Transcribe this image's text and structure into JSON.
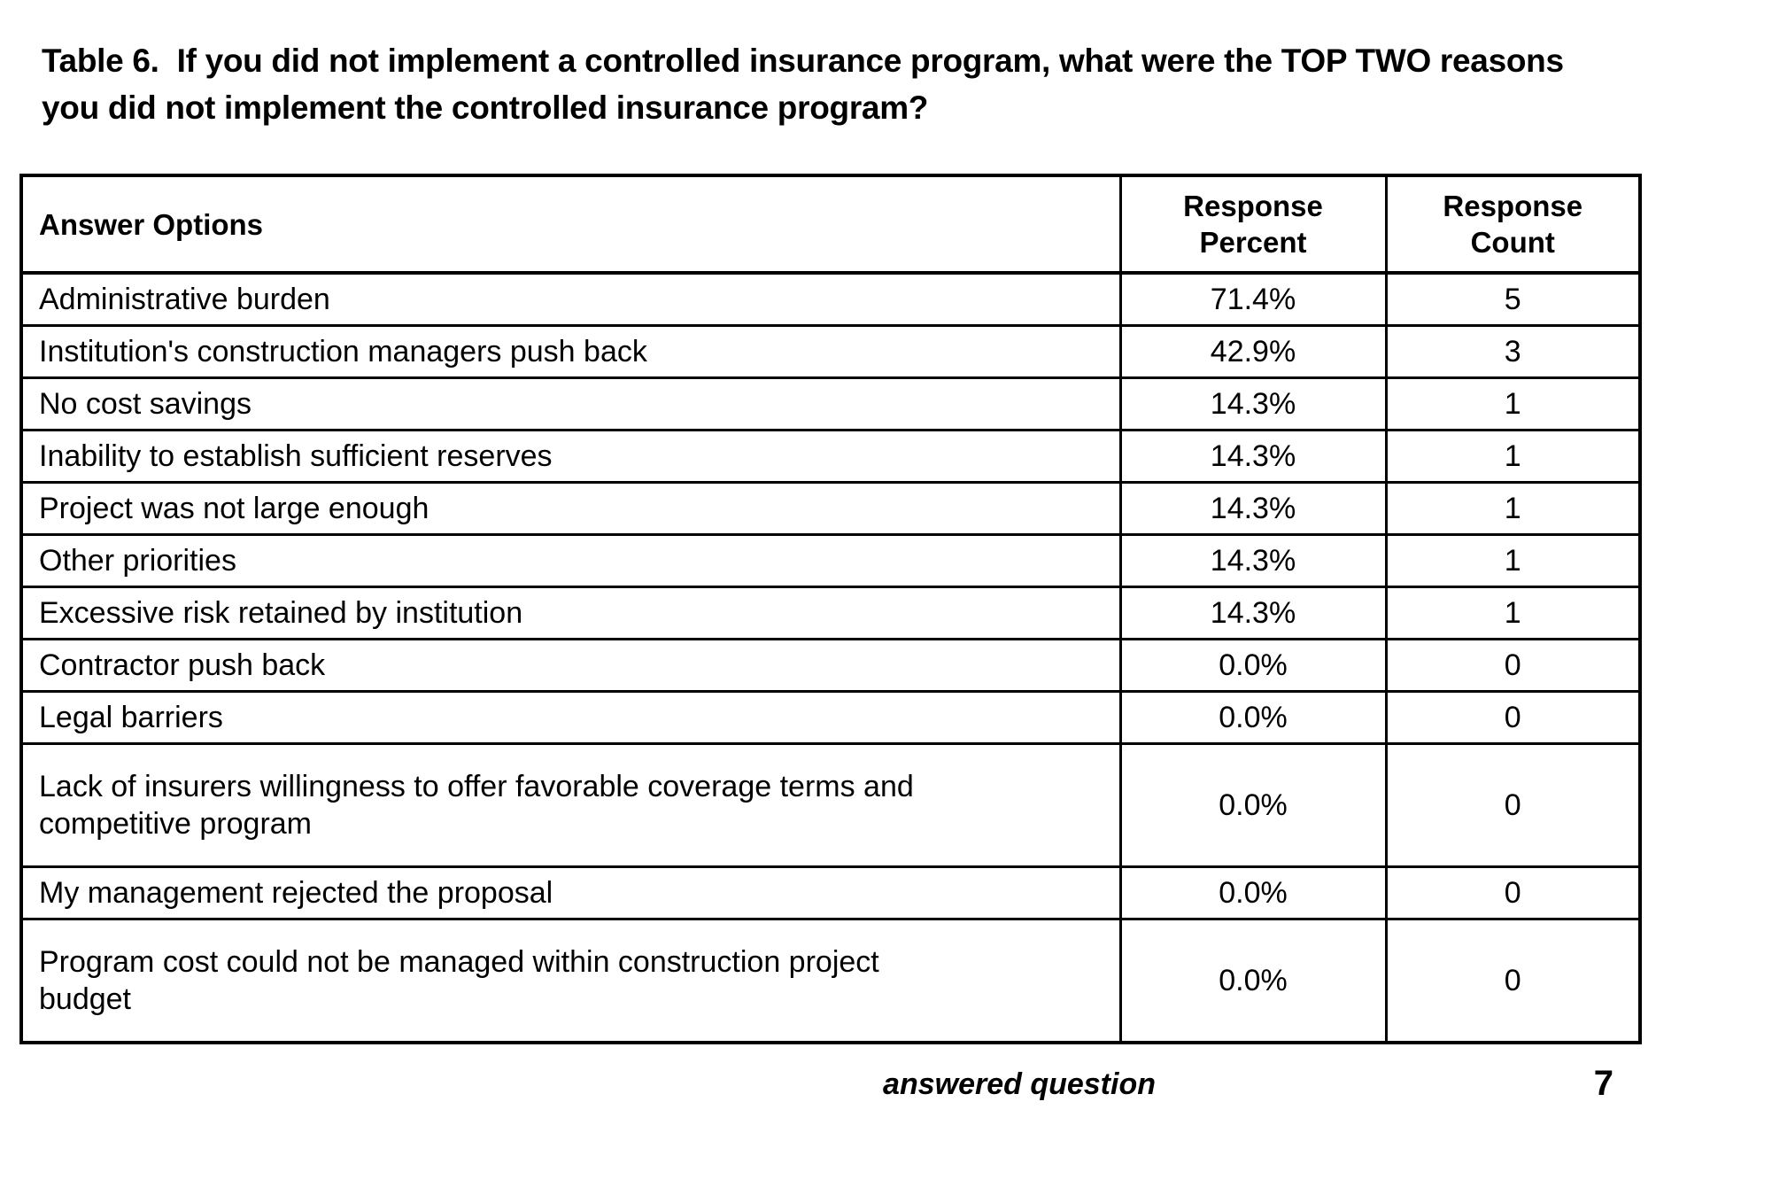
{
  "page": {
    "background_color": "#ffffff",
    "text_color": "#000000",
    "border_color": "#000000"
  },
  "title_lines": [
    "Table 6.  If you did not implement a controlled insurance program, what were the TOP TWO reasons",
    "you did not implement the controlled insurance program?"
  ],
  "table": {
    "headers": {
      "answer_options": "Answer Options",
      "response_percent": "Response\nPercent",
      "response_count": "Response\nCount"
    },
    "rows": [
      {
        "label": "Administrative burden",
        "percent": "71.4%",
        "count": "5"
      },
      {
        "label": "Institution's construction managers push back",
        "percent": "42.9%",
        "count": "3"
      },
      {
        "label": "No cost savings",
        "percent": "14.3%",
        "count": "1"
      },
      {
        "label": "Inability to establish sufficient reserves",
        "percent": "14.3%",
        "count": "1"
      },
      {
        "label": "Project was not large enough",
        "percent": "14.3%",
        "count": "1"
      },
      {
        "label": "Other priorities",
        "percent": "14.3%",
        "count": "1"
      },
      {
        "label": "Excessive risk retained by institution",
        "percent": "14.3%",
        "count": "1"
      },
      {
        "label": "Contractor push back",
        "percent": "0.0%",
        "count": "0"
      },
      {
        "label": "Legal barriers",
        "percent": "0.0%",
        "count": "0"
      },
      {
        "label": "Lack of insurers willingness to offer favorable coverage terms and\ncompetitive program",
        "percent": "0.0%",
        "count": "0"
      },
      {
        "label": "My management rejected the proposal",
        "percent": "0.0%",
        "count": "0"
      },
      {
        "label": "Program cost could not be managed within construction project\nbudget",
        "percent": "0.0%",
        "count": "0"
      }
    ]
  },
  "footer": {
    "label": "answered question",
    "count": "7"
  }
}
